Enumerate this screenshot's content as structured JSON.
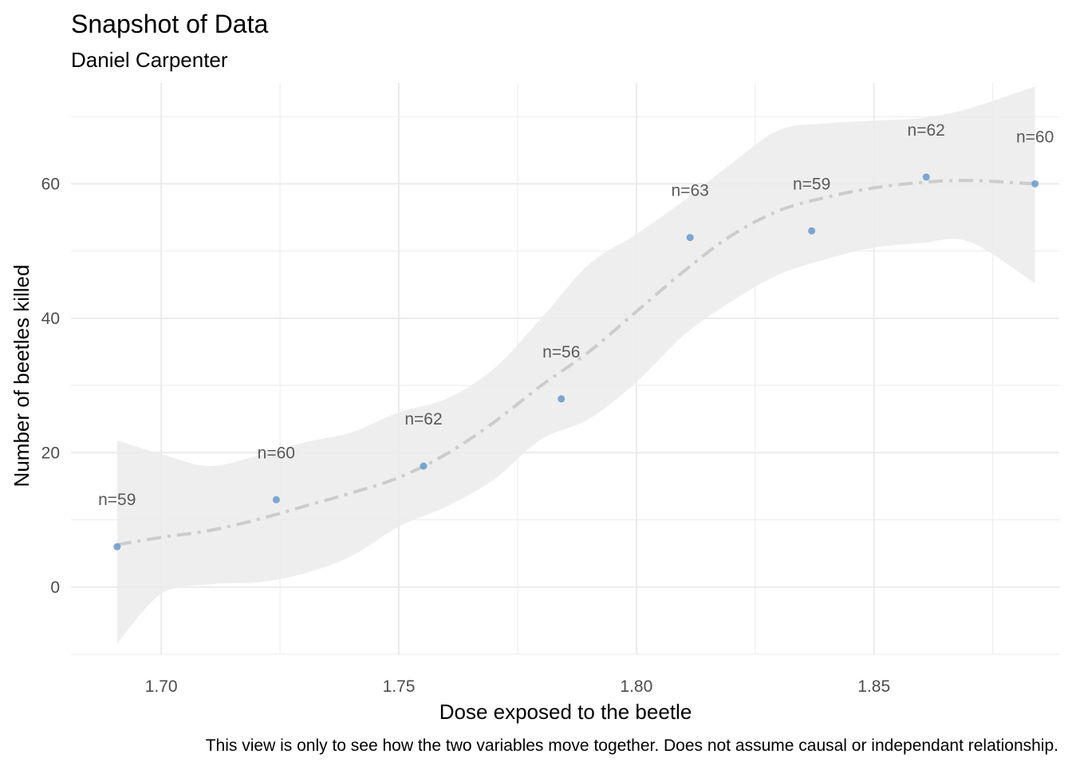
{
  "chart_data": {
    "type": "scatter",
    "title": "Snapshot of Data",
    "subtitle": "Daniel Carpenter",
    "xlabel": "Dose exposed to the beetle",
    "ylabel": "Number of beetles killed",
    "caption": "This view is only to see how the two variables move together. Does not assume causal or independant relationship.",
    "xlim": [
      1.681,
      1.889
    ],
    "ylim": [
      -10,
      75
    ],
    "xticks": [
      1.7,
      1.75,
      1.8,
      1.85
    ],
    "xtick_labels": [
      "1.70",
      "1.75",
      "1.80",
      "1.85"
    ],
    "yticks": [
      0,
      20,
      40,
      60
    ],
    "ytick_labels": [
      "0",
      "20",
      "40",
      "60"
    ],
    "grid": true,
    "points": [
      {
        "x": 1.6907,
        "y": 6,
        "label": "n=59"
      },
      {
        "x": 1.7242,
        "y": 13,
        "label": "n=60"
      },
      {
        "x": 1.7552,
        "y": 18,
        "label": "n=62"
      },
      {
        "x": 1.7842,
        "y": 28,
        "label": "n=56"
      },
      {
        "x": 1.8113,
        "y": 52,
        "label": "n=63"
      },
      {
        "x": 1.8369,
        "y": 53,
        "label": "n=59"
      },
      {
        "x": 1.861,
        "y": 61,
        "label": "n=62"
      },
      {
        "x": 1.8839,
        "y": 60,
        "label": "n=60"
      }
    ],
    "smooth": {
      "x": [
        1.6907,
        1.7,
        1.71,
        1.72,
        1.73,
        1.74,
        1.75,
        1.76,
        1.77,
        1.78,
        1.79,
        1.8,
        1.81,
        1.82,
        1.83,
        1.84,
        1.85,
        1.86,
        1.87,
        1.8839
      ],
      "y": [
        6.3,
        7.4,
        8.4,
        10.0,
        12.0,
        14.0,
        16.3,
        19.8,
        24.5,
        30.0,
        35.0,
        41.0,
        47.0,
        52.3,
        56.0,
        58.0,
        59.4,
        60.2,
        60.5,
        60.0
      ],
      "lower": [
        -8.4,
        -1.0,
        0.4,
        0.7,
        2.0,
        4.6,
        9.0,
        12.0,
        16.0,
        22.0,
        25.0,
        30.5,
        37.5,
        42.5,
        46.5,
        48.8,
        50.5,
        51.2,
        51.4,
        45.2
      ],
      "upper": [
        21.8,
        19.8,
        18.0,
        19.5,
        21.5,
        23.0,
        26.0,
        28.0,
        32.5,
        40.0,
        48.0,
        52.5,
        57.5,
        63.0,
        68.0,
        69.0,
        69.4,
        69.8,
        71.2,
        74.5
      ]
    },
    "colors": {
      "point": "#6699cc",
      "ribbon": "#ebebeb",
      "smooth_line": "#cccccc",
      "grid": "#ebebeb",
      "label": "#595959"
    }
  }
}
